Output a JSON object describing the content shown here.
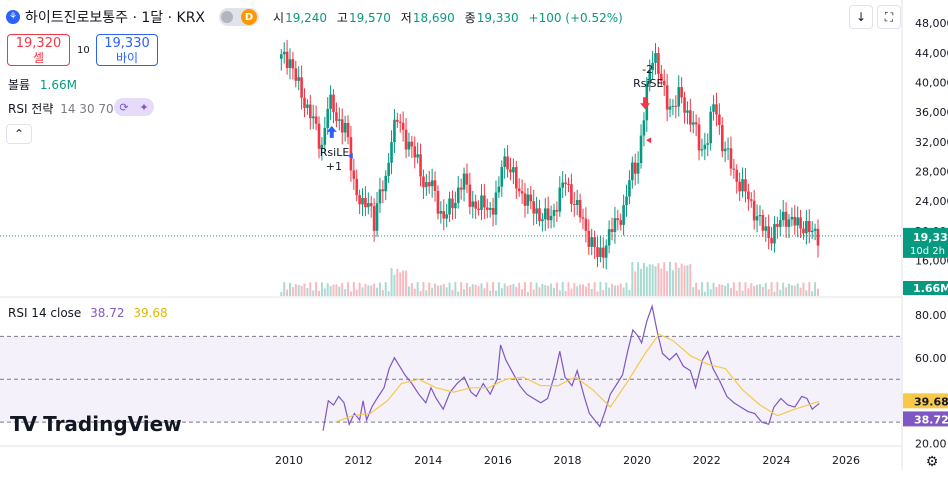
{
  "header": {
    "title": "하이트진로보통주 · 1달 · KRX",
    "toggle_letter": "D",
    "ohlc": [
      {
        "key": "시",
        "value": "19,240"
      },
      {
        "key": "고",
        "value": "19,570"
      },
      {
        "key": "저",
        "value": "18,690"
      },
      {
        "key": "종",
        "value": "19,330"
      }
    ],
    "change": "+100 (+0.52%)"
  },
  "trade": {
    "sell_price": "19,320",
    "sell_label": "셀",
    "spread": "10",
    "buy_price": "19,330",
    "buy_label": "바이"
  },
  "volume_label": {
    "name": "볼륨",
    "value": "1.66M"
  },
  "strategy_label": {
    "name": "RSI 전략",
    "params": "14 30 70"
  },
  "rsi_legend": {
    "name": "RSI 14 close",
    "rsi": "38.72",
    "ma": "39.68"
  },
  "brand": "TradingView",
  "colors": {
    "up": "#089981",
    "down": "#f23645",
    "rsi": "#7e57c2",
    "rsi_ma": "#f7c948",
    "band": "#ede7f6",
    "price_line": "#089981"
  },
  "chart_data": [
    {
      "type": "candlestick",
      "interval": "1 month",
      "x_ticks": [
        "2010",
        "2012",
        "2014",
        "2016",
        "2018",
        "2020",
        "2022",
        "2024",
        "2026"
      ],
      "y_ticks": [
        "16,000",
        "20,000",
        "24,000",
        "28,000",
        "32,000",
        "36,000",
        "40,000",
        "44,000",
        "48,000"
      ],
      "ylim": [
        15000,
        49500
      ],
      "x_range": [
        2009.4,
        2026.8
      ],
      "last_price": "19,330",
      "countdown": "10d 2h",
      "close_series": [
        [
          2010.0,
          43200
        ],
        [
          2010.3,
          38500
        ],
        [
          2010.6,
          35800
        ],
        [
          2010.9,
          31000
        ],
        [
          2011.1,
          37500
        ],
        [
          2011.35,
          35200
        ],
        [
          2011.6,
          33800
        ],
        [
          2011.8,
          27200
        ],
        [
          2011.95,
          25000
        ],
        [
          2012.1,
          22800
        ],
        [
          2012.3,
          24200
        ],
        [
          2012.4,
          21000
        ],
        [
          2012.55,
          24300
        ],
        [
          2012.75,
          26800
        ],
        [
          2012.9,
          32600
        ],
        [
          2013.1,
          35000
        ],
        [
          2013.3,
          32800
        ],
        [
          2013.5,
          30800
        ],
        [
          2013.7,
          29100
        ],
        [
          2013.9,
          25600
        ],
        [
          2014.05,
          26600
        ],
        [
          2014.25,
          23800
        ],
        [
          2014.4,
          21300
        ],
        [
          2014.6,
          23300
        ],
        [
          2014.8,
          25000
        ],
        [
          2015.0,
          26800
        ],
        [
          2015.2,
          24100
        ],
        [
          2015.4,
          22800
        ],
        [
          2015.6,
          23900
        ],
        [
          2015.8,
          22500
        ],
        [
          2016.0,
          25300
        ],
        [
          2016.1,
          30500
        ],
        [
          2016.3,
          28400
        ],
        [
          2016.5,
          26200
        ],
        [
          2016.7,
          24800
        ],
        [
          2016.9,
          23400
        ],
        [
          2017.1,
          22600
        ],
        [
          2017.3,
          21600
        ],
        [
          2017.5,
          21900
        ],
        [
          2017.7,
          24300
        ],
        [
          2017.9,
          26800
        ],
        [
          2018.1,
          24600
        ],
        [
          2018.3,
          22500
        ],
        [
          2018.5,
          20100
        ],
        [
          2018.7,
          18100
        ],
        [
          2018.85,
          16300
        ],
        [
          2019.0,
          17600
        ],
        [
          2019.2,
          19800
        ],
        [
          2019.4,
          21300
        ],
        [
          2019.6,
          23100
        ],
        [
          2019.8,
          27800
        ],
        [
          2020.0,
          29600
        ],
        [
          2020.15,
          34700
        ],
        [
          2020.3,
          40600
        ],
        [
          2020.45,
          44800
        ],
        [
          2020.6,
          41200
        ],
        [
          2020.8,
          37400
        ],
        [
          2021.0,
          36800
        ],
        [
          2021.2,
          38300
        ],
        [
          2021.4,
          36100
        ],
        [
          2021.6,
          34200
        ],
        [
          2021.8,
          30700
        ],
        [
          2022.0,
          32700
        ],
        [
          2022.2,
          37600
        ],
        [
          2022.4,
          32100
        ],
        [
          2022.6,
          29700
        ],
        [
          2022.8,
          27300
        ],
        [
          2023.0,
          25800
        ],
        [
          2023.2,
          24100
        ],
        [
          2023.4,
          22100
        ],
        [
          2023.6,
          20200
        ],
        [
          2023.8,
          19300
        ],
        [
          2024.0,
          20500
        ],
        [
          2024.2,
          22200
        ],
        [
          2024.4,
          21300
        ],
        [
          2024.6,
          20700
        ],
        [
          2024.8,
          20900
        ],
        [
          2025.0,
          19500
        ],
        [
          2025.2,
          19330
        ]
      ],
      "volume_max_label": "1.66M"
    },
    {
      "type": "line",
      "name": "RSI 14 close",
      "y_ticks": [
        "20.00",
        "40.00",
        "60.00",
        "80.00"
      ],
      "ylim": [
        17,
        86
      ],
      "bands": [
        30,
        50,
        70
      ],
      "last_rsi": "38.72",
      "last_ma": "39.68",
      "rsi": [
        [
          2010.95,
          26
        ],
        [
          2011.1,
          40
        ],
        [
          2011.25,
          38
        ],
        [
          2011.4,
          42
        ],
        [
          2011.55,
          39
        ],
        [
          2011.7,
          29
        ],
        [
          2011.85,
          34
        ],
        [
          2012.0,
          31
        ],
        [
          2012.1,
          40
        ],
        [
          2012.2,
          31
        ],
        [
          2012.35,
          37
        ],
        [
          2012.5,
          41
        ],
        [
          2012.7,
          46
        ],
        [
          2012.85,
          55
        ],
        [
          2013.0,
          60
        ],
        [
          2013.15,
          56
        ],
        [
          2013.3,
          52
        ],
        [
          2013.5,
          48
        ],
        [
          2013.7,
          43
        ],
        [
          2013.9,
          39
        ],
        [
          2014.05,
          46
        ],
        [
          2014.2,
          41
        ],
        [
          2014.4,
          36
        ],
        [
          2014.6,
          44
        ],
        [
          2014.8,
          48
        ],
        [
          2015.0,
          51
        ],
        [
          2015.2,
          44
        ],
        [
          2015.35,
          42
        ],
        [
          2015.55,
          48
        ],
        [
          2015.75,
          43
        ],
        [
          2015.95,
          50
        ],
        [
          2016.05,
          66
        ],
        [
          2016.2,
          59
        ],
        [
          2016.4,
          53
        ],
        [
          2016.6,
          47
        ],
        [
          2016.8,
          43
        ],
        [
          2017.0,
          41
        ],
        [
          2017.2,
          39
        ],
        [
          2017.4,
          41
        ],
        [
          2017.6,
          52
        ],
        [
          2017.75,
          63
        ],
        [
          2017.9,
          51
        ],
        [
          2018.1,
          47
        ],
        [
          2018.25,
          54
        ],
        [
          2018.45,
          42
        ],
        [
          2018.6,
          34
        ],
        [
          2018.75,
          31
        ],
        [
          2018.9,
          28
        ],
        [
          2019.05,
          35
        ],
        [
          2019.2,
          43
        ],
        [
          2019.4,
          48
        ],
        [
          2019.55,
          52
        ],
        [
          2019.7,
          63
        ],
        [
          2019.85,
          73
        ],
        [
          2020.0,
          70
        ],
        [
          2020.1,
          67
        ],
        [
          2020.25,
          77
        ],
        [
          2020.4,
          84
        ],
        [
          2020.55,
          72
        ],
        [
          2020.7,
          62
        ],
        [
          2020.9,
          59
        ],
        [
          2021.1,
          62
        ],
        [
          2021.3,
          56
        ],
        [
          2021.5,
          54
        ],
        [
          2021.65,
          46
        ],
        [
          2021.85,
          59
        ],
        [
          2022.0,
          63
        ],
        [
          2022.15,
          55
        ],
        [
          2022.35,
          49
        ],
        [
          2022.55,
          42
        ],
        [
          2022.75,
          39
        ],
        [
          2022.95,
          37
        ],
        [
          2023.15,
          35
        ],
        [
          2023.35,
          34
        ],
        [
          2023.55,
          30
        ],
        [
          2023.75,
          29
        ],
        [
          2023.9,
          37
        ],
        [
          2024.1,
          41
        ],
        [
          2024.3,
          38
        ],
        [
          2024.5,
          37
        ],
        [
          2024.7,
          42
        ],
        [
          2024.85,
          41
        ],
        [
          2025.0,
          36
        ],
        [
          2025.2,
          38.72
        ]
      ],
      "rsi_ma": [
        [
          2011.3,
          30
        ],
        [
          2011.8,
          33
        ],
        [
          2012.3,
          34
        ],
        [
          2012.8,
          40
        ],
        [
          2013.2,
          48
        ],
        [
          2013.7,
          50
        ],
        [
          2014.2,
          46
        ],
        [
          2014.7,
          44
        ],
        [
          2015.2,
          46
        ],
        [
          2015.7,
          46
        ],
        [
          2016.2,
          50
        ],
        [
          2016.7,
          51
        ],
        [
          2017.2,
          47
        ],
        [
          2017.7,
          47
        ],
        [
          2018.2,
          51
        ],
        [
          2018.7,
          45
        ],
        [
          2019.2,
          37
        ],
        [
          2019.7,
          49
        ],
        [
          2020.2,
          62
        ],
        [
          2020.6,
          71
        ],
        [
          2021.0,
          68
        ],
        [
          2021.5,
          61
        ],
        [
          2022.0,
          57
        ],
        [
          2022.5,
          55
        ],
        [
          2023.0,
          45
        ],
        [
          2023.5,
          38
        ],
        [
          2024.0,
          33
        ],
        [
          2024.5,
          36
        ],
        [
          2025.2,
          39.68
        ]
      ]
    }
  ],
  "trade_markers": [
    {
      "label": "RsiLE",
      "qty": "+1",
      "x": 2011.2,
      "side": "long"
    },
    {
      "label": "RsiSE",
      "qty": "-2",
      "x": 2020.2,
      "side": "short"
    }
  ]
}
